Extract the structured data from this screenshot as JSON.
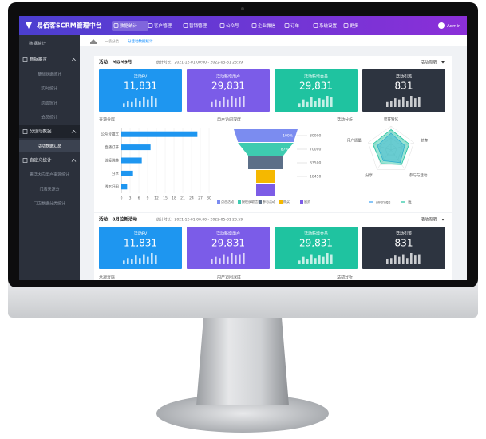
{
  "header": {
    "logo": "易佰客SCRM管理中台",
    "nav": [
      "数据统计",
      "客户管理",
      "营销管理",
      "公众号",
      "企业微信",
      "订单",
      "系统设置",
      "更多"
    ],
    "user": "Admin"
  },
  "sidebar": {
    "title": "数据统计",
    "groups": [
      {
        "label": "数据概览",
        "items": [
          "基础数据统计",
          "实时统计",
          "页面统计",
          "会员统计"
        ]
      },
      {
        "label": "分活动数据",
        "items": [
          "活动数据汇总"
        ]
      },
      {
        "label": "自定义统计",
        "items": [
          "裹活大应用户来源统计",
          "门店来源分",
          "门店数据分类统计"
        ]
      }
    ]
  },
  "breadcrumb": [
    "一级分类",
    "分活动数据统计"
  ],
  "cards": [
    {
      "title": "活动：MGM9月",
      "period": "统计时长：2021-12-01 00:00 - 2022-05-31 23:59",
      "cycle": "活动周期",
      "kpis": [
        {
          "label": "活动PV",
          "value": "11,831",
          "spark": [
            3,
            5,
            4,
            7,
            5,
            8,
            6,
            9,
            7
          ]
        },
        {
          "label": "活动新增用户",
          "value": "29,831",
          "spark": [
            4,
            6,
            5,
            8,
            6,
            9,
            7,
            8,
            9
          ]
        },
        {
          "label": "活动新增会员",
          "value": "29,831",
          "spark": [
            3,
            6,
            4,
            8,
            5,
            7,
            6,
            9,
            8
          ]
        },
        {
          "label": "活动引流",
          "value": "831",
          "spark": [
            4,
            5,
            7,
            6,
            8,
            5,
            9,
            7,
            8
          ]
        }
      ],
      "source": {
        "title": "来源分层",
        "categories": [
          "公众号推文",
          "直播打开",
          "链接跳转",
          "分享",
          "线下扫码"
        ],
        "values": [
          26,
          10,
          7,
          4,
          2
        ],
        "xlim": [
          0,
          30
        ],
        "xticks": [
          0,
          3,
          6,
          9,
          12,
          15,
          18,
          21,
          24,
          27,
          30
        ]
      },
      "funnel": {
        "title": "用户访问深度",
        "stages": [
          "点击活动",
          "授权获取信息",
          "参与活动",
          "购买",
          "留资"
        ],
        "values": [
          100,
          87,
          55,
          30,
          30
        ],
        "value_labels": [
          "100%",
          "87%",
          null,
          null,
          null
        ],
        "side_labels": [
          "80000",
          "70000",
          "33500",
          "18450"
        ]
      },
      "radar": {
        "title": "活动分析",
        "indicators": [
          "获客转化",
          "获客",
          "参与与活动",
          "分享",
          "用户质量"
        ],
        "series": [
          {
            "name": "average",
            "values": [
              70,
              60,
              65,
              55,
              60
            ]
          },
          {
            "name": "我",
            "values": [
              85,
              80,
              75,
              70,
              80
            ]
          }
        ]
      }
    },
    {
      "title": "活动：8月拉新活动",
      "period": "统计时长：2021-12-01 00:00 - 2022-05-31 23:59",
      "cycle": "活动周期",
      "kpis": [
        {
          "label": "活动PV",
          "value": "11,831",
          "spark": [
            3,
            5,
            4,
            7,
            5,
            8,
            6,
            9,
            7
          ]
        },
        {
          "label": "活动新增用户",
          "value": "29,831",
          "spark": [
            4,
            6,
            5,
            8,
            6,
            9,
            7,
            8,
            9
          ]
        },
        {
          "label": "活动新增会员",
          "value": "29,831",
          "spark": [
            3,
            6,
            4,
            8,
            5,
            7,
            6,
            9,
            8
          ]
        },
        {
          "label": "活动引流",
          "value": "831",
          "spark": [
            4,
            5,
            7,
            6,
            8,
            5,
            9,
            7,
            8
          ]
        }
      ],
      "source": {
        "title": "来源分层"
      },
      "funnel": {
        "title": "用户访问深度"
      },
      "radar": {
        "title": "活动分析"
      }
    }
  ]
}
